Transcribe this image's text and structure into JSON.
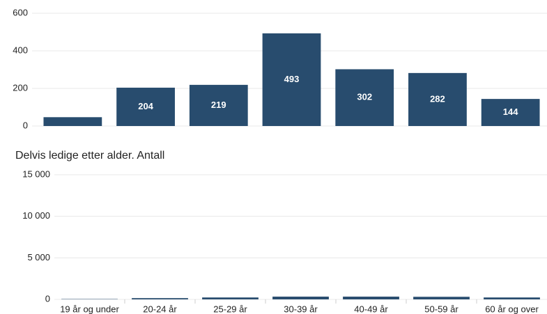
{
  "chart_data": [
    {
      "type": "bar",
      "values": [
        47,
        204,
        219,
        493,
        302,
        282,
        144
      ],
      "color": "#284c6e",
      "ylim": [
        0,
        600
      ],
      "yticks": [
        0,
        200,
        400,
        600
      ],
      "grid": true,
      "data_labels": true
    },
    {
      "type": "bar",
      "title": "Delvis ledige etter alder. Antall",
      "categories": [
        "19 år og under",
        "20-24 år",
        "25-29 år",
        "30-39 år",
        "40-49 år",
        "50-59 år",
        "60 år og over"
      ],
      "values": [
        40,
        150,
        230,
        330,
        330,
        310,
        230
      ],
      "color": "#284c6e",
      "ylim": [
        0,
        15000
      ],
      "yticks": [
        0,
        {
          "value": 5000,
          "label": "5 000"
        },
        {
          "value": 10000,
          "label": "10 000"
        },
        {
          "value": 15000,
          "label": "15 000"
        }
      ],
      "grid": true
    }
  ]
}
